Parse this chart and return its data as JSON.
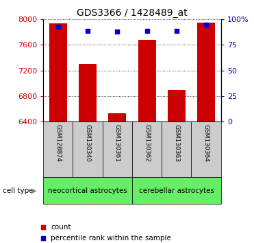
{
  "title": "GDS3366 / 1428489_at",
  "samples": [
    "GSM128874",
    "GSM130340",
    "GSM130361",
    "GSM130362",
    "GSM130363",
    "GSM130364"
  ],
  "counts": [
    7940,
    7300,
    6530,
    7680,
    6900,
    7950
  ],
  "percentiles": [
    93,
    89,
    88,
    89,
    89,
    95
  ],
  "group_labels": [
    "neocortical astrocytes",
    "cerebellar astrocytes"
  ],
  "group_starts": [
    0,
    3
  ],
  "group_ends": [
    2,
    5
  ],
  "group_color": "#66ee66",
  "bar_color": "#cc0000",
  "percentile_color": "#0000cc",
  "ylim_left": [
    6400,
    8000
  ],
  "ylim_right": [
    0,
    100
  ],
  "yticks_left": [
    6400,
    6800,
    7200,
    7600,
    8000
  ],
  "yticks_right": [
    0,
    25,
    50,
    75,
    100
  ],
  "ytick_labels_right": [
    "0",
    "25",
    "50",
    "75",
    "100%"
  ],
  "tick_label_bg": "#cccccc",
  "cell_type_label": "cell type",
  "legend_count_label": "count",
  "legend_percentile_label": "percentile rank within the sample"
}
